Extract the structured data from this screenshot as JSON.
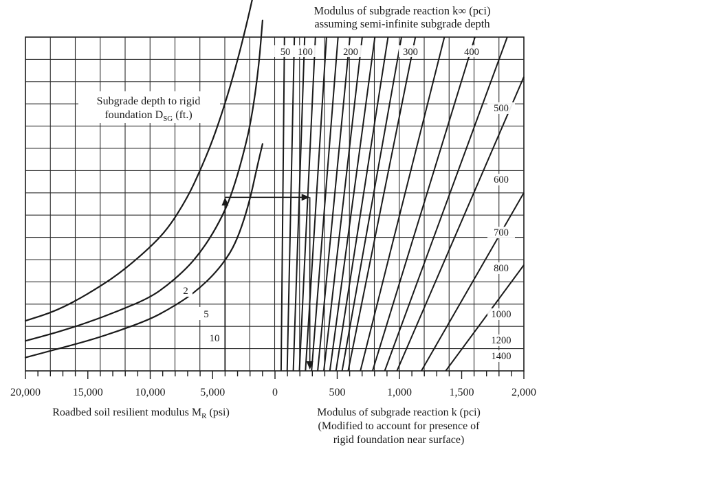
{
  "chart_data": {
    "type": "line",
    "top_title": [
      "Modulus of subgrade reaction k∞ (pci)",
      "assuming semi-infinite subgrade depth"
    ],
    "inset_label": [
      "Subgrade depth to rigid",
      "foundation D",
      "SG",
      " (ft.)"
    ],
    "left_panel": {
      "xlabel": "Roadbed soil resilient modulus M",
      "xlabel_sub": "R",
      "xlabel_unit": " (psi)",
      "x_range": [
        20000,
        0
      ],
      "tick_labels": [
        "20,000",
        "15,000",
        "10,000",
        "5,000",
        "0"
      ],
      "tick_values": [
        20000,
        15000,
        10000,
        5000,
        0
      ],
      "curves": [
        {
          "name": "2",
          "points": [
            [
              20000,
              0.15
            ],
            [
              17500,
              0.18
            ],
            [
              15000,
              0.23
            ],
            [
              12500,
              0.29
            ],
            [
              10000,
              0.37
            ],
            [
              8500,
              0.43
            ],
            [
              7000,
              0.52
            ],
            [
              6000,
              0.6
            ],
            [
              5000,
              0.69
            ],
            [
              4000,
              0.8
            ],
            [
              3000,
              0.93
            ],
            [
              2200,
              1.05
            ],
            [
              1600,
              1.15
            ],
            [
              1150,
              1.2
            ]
          ]
        },
        {
          "name": "5",
          "points": [
            [
              20000,
              0.09
            ],
            [
              17500,
              0.115
            ],
            [
              15000,
              0.145
            ],
            [
              12500,
              0.18
            ],
            [
              10000,
              0.22
            ],
            [
              8500,
              0.26
            ],
            [
              7000,
              0.31
            ],
            [
              6000,
              0.355
            ],
            [
              5000,
              0.41
            ],
            [
              4000,
              0.48
            ],
            [
              3300,
              0.55
            ],
            [
              2600,
              0.64
            ],
            [
              1900,
              0.75
            ],
            [
              1300,
              0.91
            ],
            [
              1000,
              1.05
            ]
          ]
        },
        {
          "name": "10",
          "points": [
            [
              20000,
              0.04
            ],
            [
              17500,
              0.065
            ],
            [
              15000,
              0.09
            ],
            [
              12500,
              0.12
            ],
            [
              10000,
              0.155
            ],
            [
              8500,
              0.185
            ],
            [
              7000,
              0.22
            ],
            [
              6000,
              0.25
            ],
            [
              5000,
              0.285
            ],
            [
              4000,
              0.33
            ],
            [
              3200,
              0.38
            ],
            [
              2500,
              0.45
            ],
            [
              1900,
              0.53
            ],
            [
              1500,
              0.6
            ],
            [
              1000,
              0.68
            ]
          ]
        }
      ]
    },
    "right_panel": {
      "xlabel": [
        "Modulus of subgrade reaction k (pci)",
        "(Modified to account for presence of",
        "rigid foundation near surface)"
      ],
      "x_range": [
        0,
        2000
      ],
      "tick_labels": [
        "500",
        "1,000",
        "1,500",
        "2,000"
      ],
      "tick_values": [
        500,
        1000,
        1500,
        2000
      ],
      "k_inf_lines": [
        {
          "name": "50",
          "k": 50
        },
        {
          "name": "100",
          "k": 100
        },
        {
          "name": "",
          "k": 150
        },
        {
          "name": "200",
          "k": 200
        },
        {
          "name": "",
          "k": 250
        },
        {
          "name": "300",
          "k": 300
        },
        {
          "name": "",
          "k": 350
        },
        {
          "name": "400",
          "k": 400
        },
        {
          "name": "",
          "k": 450
        },
        {
          "name": "500",
          "k": 500
        },
        {
          "name": "",
          "k": 550
        },
        {
          "name": "600",
          "k": 600
        },
        {
          "name": "700",
          "k": 700
        },
        {
          "name": "800",
          "k": 800
        },
        {
          "name": "",
          "k": 900
        },
        {
          "name": "1000",
          "k": 1000
        },
        {
          "name": "1200",
          "k": 1200
        },
        {
          "name": "1400",
          "k": 1400
        }
      ]
    },
    "example_path": {
      "MR": 4000,
      "level": 0.52,
      "k": 280
    },
    "grid": true
  }
}
